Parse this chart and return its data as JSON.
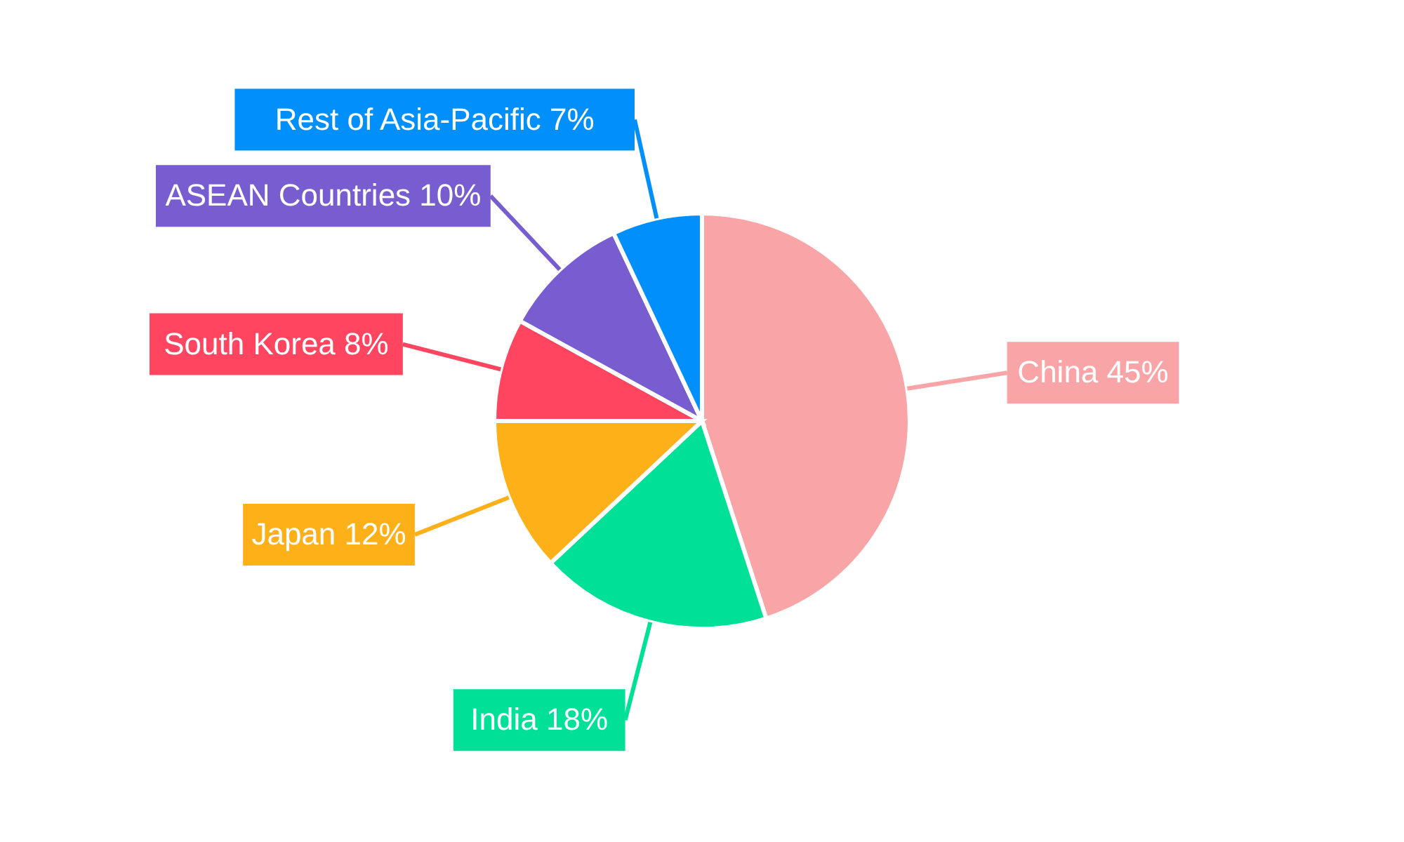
{
  "chart_data": {
    "type": "pie",
    "categories": [
      "China",
      "India",
      "Japan",
      "South Korea",
      "ASEAN Countries",
      "Rest of Asia-Pacific"
    ],
    "values": [
      45,
      18,
      12,
      8,
      10,
      7
    ],
    "value_labels": [
      "45%",
      "18%",
      "12%",
      "8%",
      "10%",
      "7%"
    ],
    "colors": [
      "#f9a5a8",
      "#00e096",
      "#feb019",
      "#ff4560",
      "#775dd0",
      "#008ffb"
    ]
  }
}
